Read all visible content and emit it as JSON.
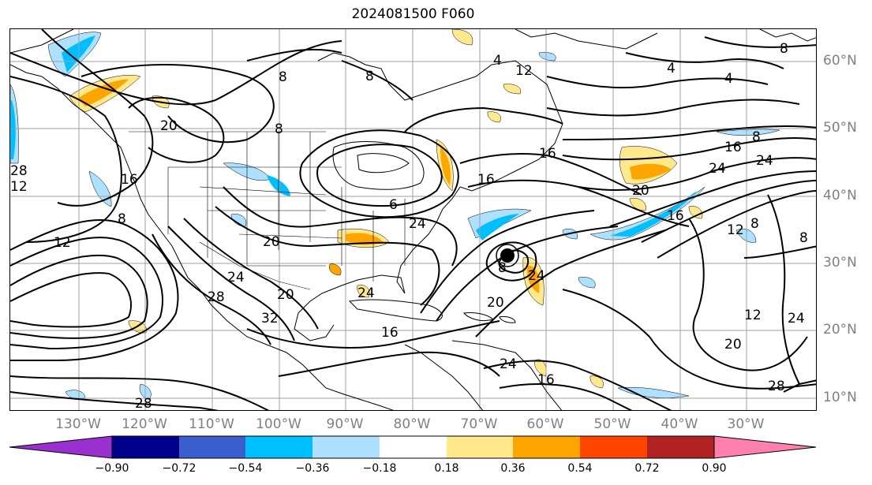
{
  "title": "2024081500 F060",
  "longitude_labels": [
    "130°W",
    "120°W",
    "110°W",
    "100°W",
    "90°W",
    "80°W",
    "70°W",
    "60°W",
    "50°W",
    "40°W",
    "30°W"
  ],
  "latitude_labels": [
    "60°N",
    "50°N",
    "40°N",
    "30°N",
    "20°N",
    "10°N"
  ],
  "colorbar": {
    "ticks": [
      "−0.90",
      "−0.72",
      "−0.54",
      "−0.36",
      "−0.18",
      "0.18",
      "0.36",
      "0.54",
      "0.72",
      "0.90"
    ],
    "colors": [
      "#9b30d0",
      "#00008b",
      "#3a5fcd",
      "#00bfff",
      "#aee0ff",
      "#ffffff",
      "#ffe98c",
      "#ffa500",
      "#ff4500",
      "#b22222",
      "#ff7fae"
    ]
  },
  "contour_labels": [
    {
      "text": "8"
    },
    {
      "text": "4"
    },
    {
      "text": "4"
    },
    {
      "text": "8"
    },
    {
      "text": "4"
    },
    {
      "text": "8"
    },
    {
      "text": "8"
    },
    {
      "text": "20"
    },
    {
      "text": "8"
    },
    {
      "text": "16"
    },
    {
      "text": "16"
    },
    {
      "text": "16"
    },
    {
      "text": "16"
    },
    {
      "text": "12"
    },
    {
      "text": "8"
    },
    {
      "text": "12"
    },
    {
      "text": "8"
    },
    {
      "text": "20"
    },
    {
      "text": "24"
    },
    {
      "text": "16"
    },
    {
      "text": "20"
    },
    {
      "text": "24"
    },
    {
      "text": "24"
    },
    {
      "text": "12"
    },
    {
      "text": "28"
    },
    {
      "text": "24"
    },
    {
      "text": "32"
    },
    {
      "text": "20"
    },
    {
      "text": "24"
    },
    {
      "text": "16"
    },
    {
      "text": "20"
    },
    {
      "text": "24"
    },
    {
      "text": "8"
    },
    {
      "text": "24"
    },
    {
      "text": "16"
    },
    {
      "text": "28"
    },
    {
      "text": "8"
    },
    {
      "text": "12"
    },
    {
      "text": "24"
    },
    {
      "text": "20"
    },
    {
      "text": "28"
    },
    {
      "text": "28"
    },
    {
      "text": "6"
    },
    {
      "text": "12"
    }
  ],
  "storm_marker": "tropical-cyclone-center"
}
